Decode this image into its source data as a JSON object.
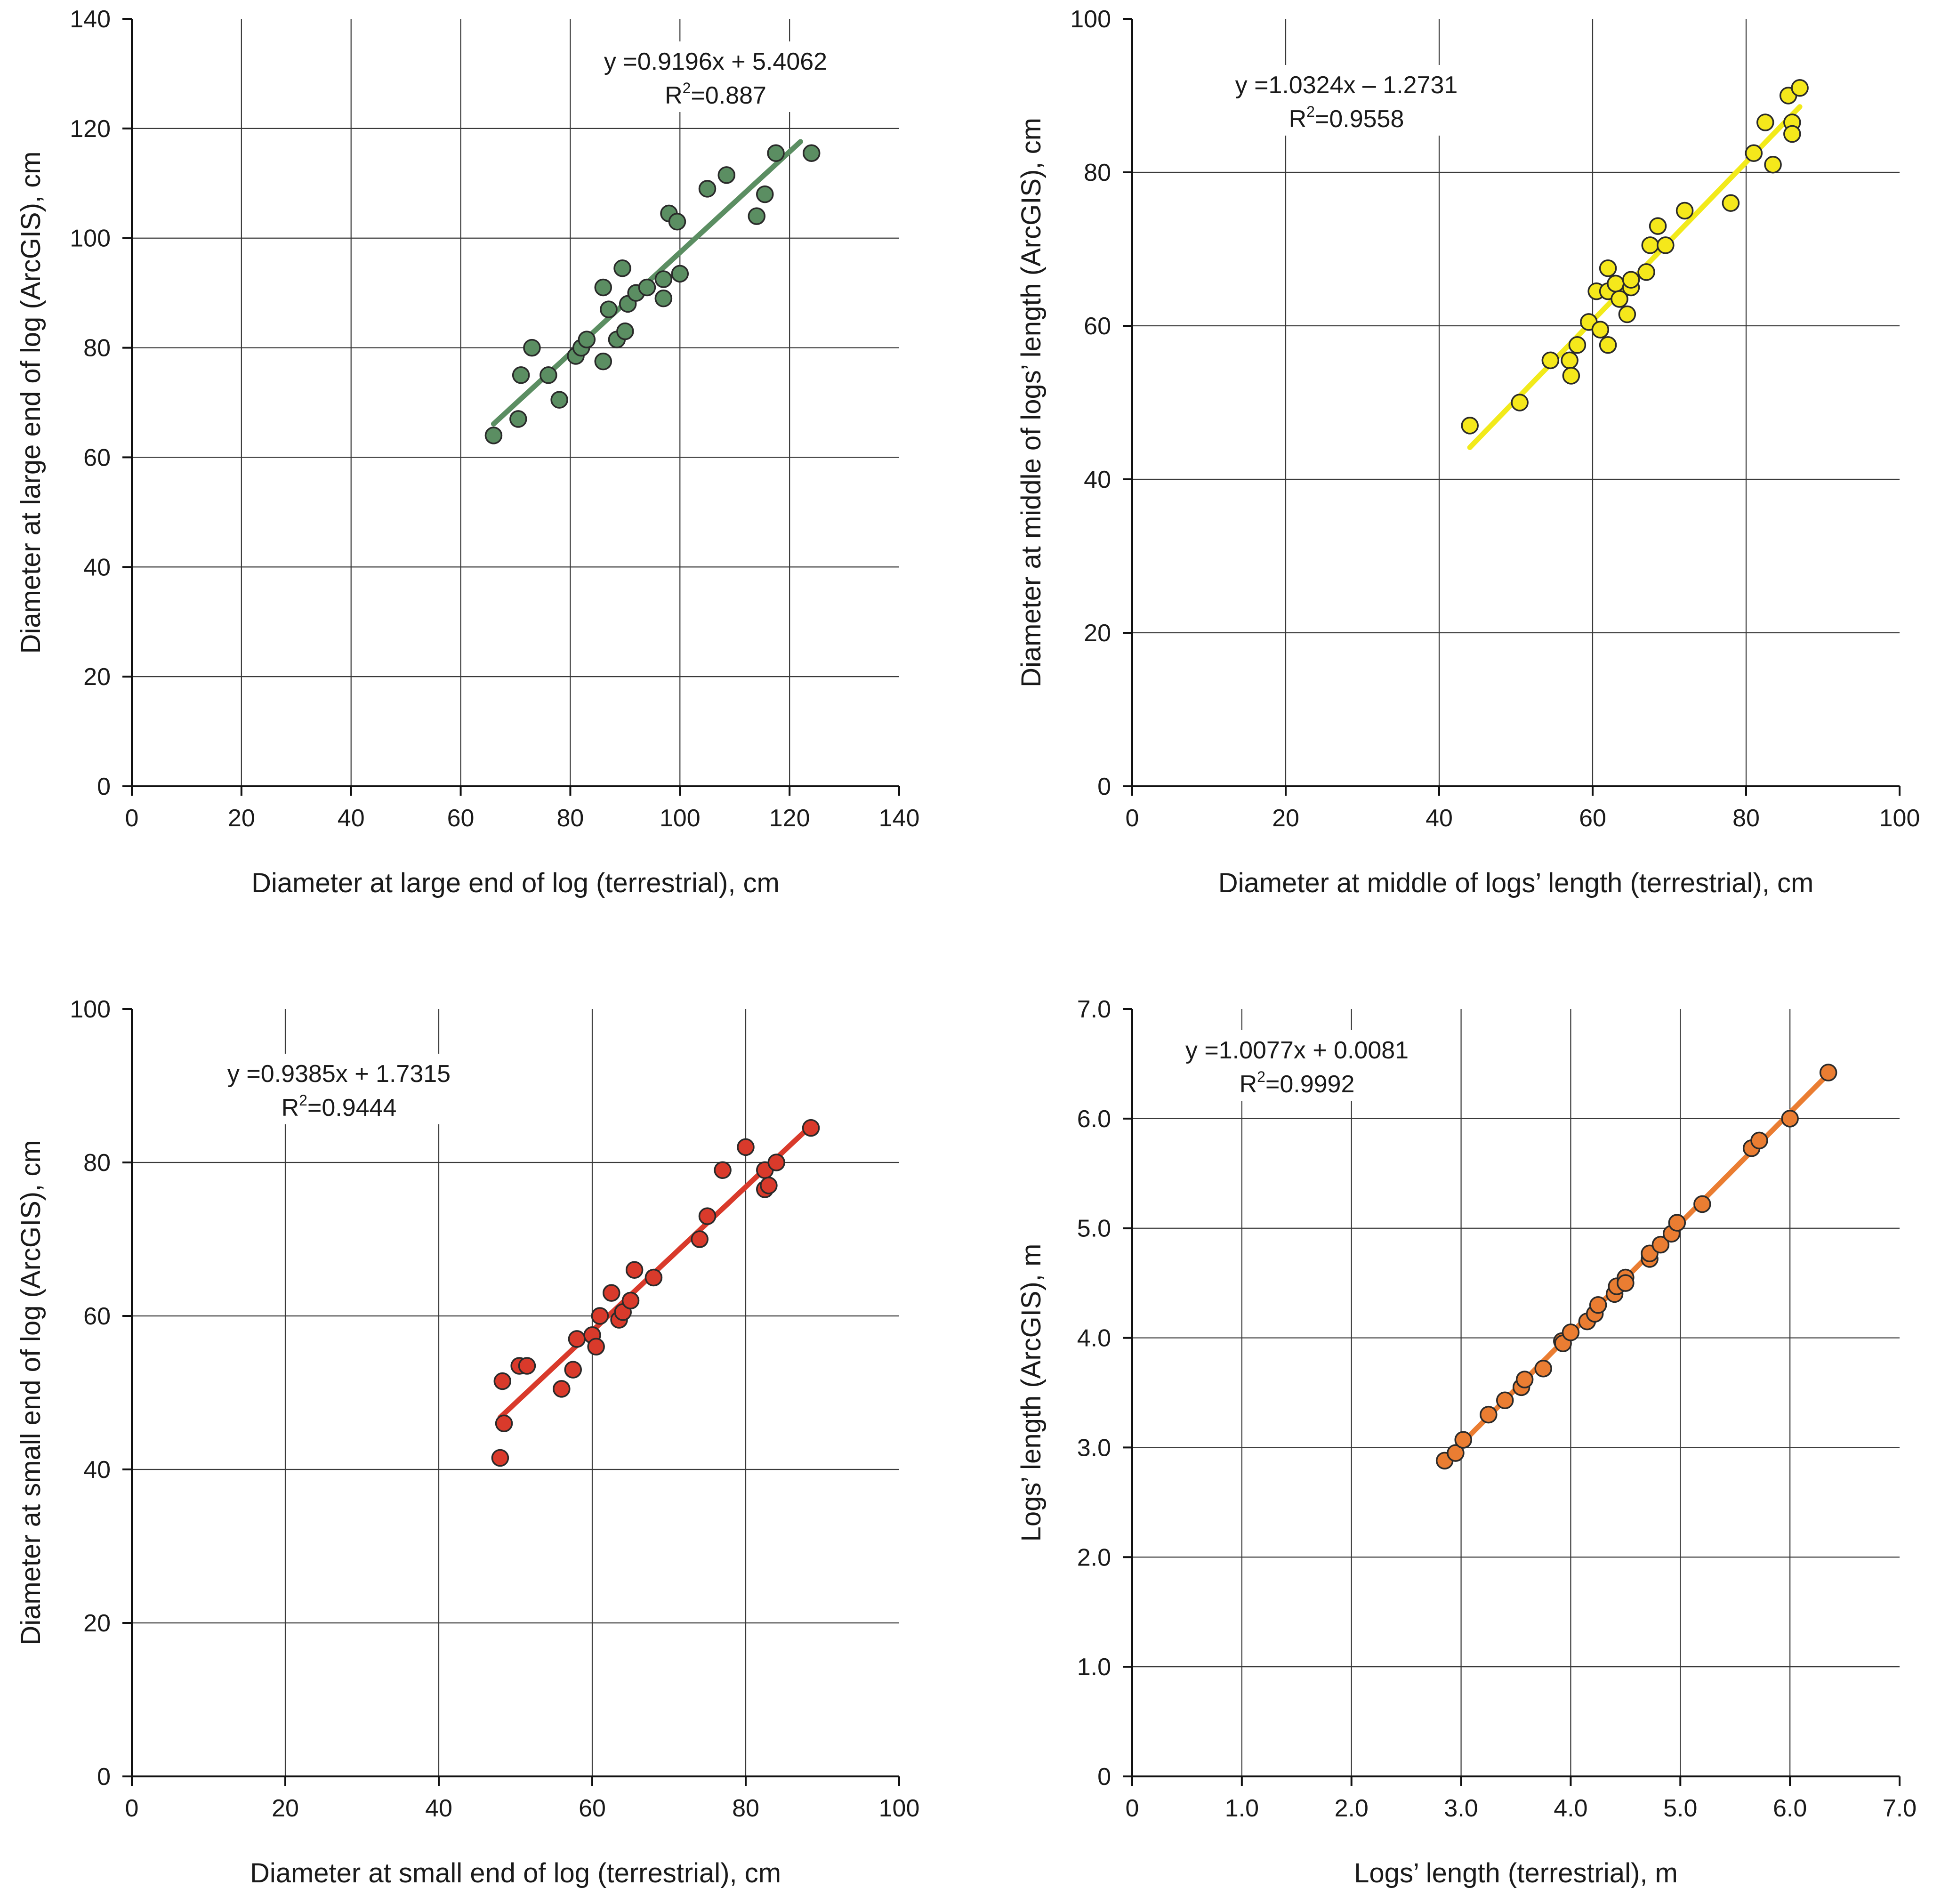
{
  "chart_data": [
    {
      "type": "scatter",
      "xlabel": "Diameter at large end of log (terrestrial), cm",
      "ylabel": "Diameter at large end of log (ArcGIS), cm",
      "xlim": [
        0,
        140
      ],
      "ylim": [
        0,
        140
      ],
      "xticks": [
        "0",
        "20",
        "40",
        "60",
        "80",
        "100",
        "120",
        "140"
      ],
      "yticks": [
        "0",
        "20",
        "40",
        "60",
        "80",
        "100",
        "120",
        "140"
      ],
      "equation": "y =0.9196x + 5.4062",
      "r2_prefix": "R",
      "r2_sup": "2",
      "r2_value": "=0.887",
      "trend": {
        "slope": 0.9196,
        "intercept": 5.4062,
        "x_range": [
          66,
          122
        ]
      },
      "color": "#5b8e62",
      "line_color": "#5b8e62",
      "points": [
        [
          66,
          64
        ],
        [
          70.5,
          67
        ],
        [
          71,
          75
        ],
        [
          73,
          80
        ],
        [
          76,
          75
        ],
        [
          78,
          70.5
        ],
        [
          81,
          78.5
        ],
        [
          82,
          80
        ],
        [
          83,
          81.5
        ],
        [
          86,
          77.5
        ],
        [
          86,
          91
        ],
        [
          87,
          87
        ],
        [
          88.5,
          81.5
        ],
        [
          89.5,
          94.5
        ],
        [
          90,
          83
        ],
        [
          90.5,
          88
        ],
        [
          92,
          90
        ],
        [
          94,
          91
        ],
        [
          97,
          89
        ],
        [
          97,
          92.5
        ],
        [
          98,
          104.5
        ],
        [
          99.5,
          103
        ],
        [
          100,
          93.5
        ],
        [
          105,
          109
        ],
        [
          108.5,
          111.5
        ],
        [
          114,
          104
        ],
        [
          115.5,
          108
        ],
        [
          117.5,
          115.5
        ],
        [
          124,
          115.5
        ]
      ]
    },
    {
      "type": "scatter",
      "xlabel": "Diameter at middle of logs’ length (terrestrial), cm",
      "ylabel": "Diameter at middle of logs’ length (ArcGIS), cm",
      "xlim": [
        0,
        100
      ],
      "ylim": [
        0,
        100
      ],
      "xticks": [
        "0",
        "20",
        "40",
        "60",
        "80",
        "100"
      ],
      "yticks": [
        "0",
        "20",
        "40",
        "60",
        "80",
        "100"
      ],
      "equation": "y =1.0324x – 1.2731",
      "r2_prefix": "R",
      "r2_sup": "2",
      "r2_value": "=0.9558",
      "trend": {
        "slope": 1.0324,
        "intercept": -1.2731,
        "x_range": [
          44,
          87
        ]
      },
      "color": "#f5e81b",
      "line_color": "#f2ea1a",
      "points": [
        [
          44,
          47
        ],
        [
          50.5,
          50
        ],
        [
          54.5,
          55.5
        ],
        [
          57,
          55.5
        ],
        [
          57.2,
          53.5
        ],
        [
          58,
          57.5
        ],
        [
          59.5,
          60.5
        ],
        [
          60.5,
          64.5
        ],
        [
          61,
          59.5
        ],
        [
          62,
          57.5
        ],
        [
          62,
          64.5
        ],
        [
          62,
          67.5
        ],
        [
          63,
          65.5
        ],
        [
          63.5,
          63.5
        ],
        [
          64.5,
          61.5
        ],
        [
          65,
          65
        ],
        [
          65,
          66
        ],
        [
          67,
          67
        ],
        [
          67.5,
          70.5
        ],
        [
          68.5,
          73
        ],
        [
          69.5,
          70.5
        ],
        [
          72,
          75
        ],
        [
          78,
          76
        ],
        [
          81,
          82.5
        ],
        [
          82.5,
          86.5
        ],
        [
          83.5,
          81
        ],
        [
          85.5,
          90
        ],
        [
          86,
          86.5
        ],
        [
          86,
          85
        ],
        [
          87,
          91
        ]
      ]
    },
    {
      "type": "scatter",
      "xlabel": "Diameter at small end of log (terrestrial), cm",
      "ylabel": "Diameter at small end of log (ArcGIS), cm",
      "xlim": [
        0,
        100
      ],
      "ylim": [
        0,
        100
      ],
      "xticks": [
        "0",
        "20",
        "40",
        "60",
        "80",
        "100"
      ],
      "yticks": [
        "0",
        "20",
        "40",
        "60",
        "80",
        "100"
      ],
      "equation": "y =0.9385x + 1.7315",
      "r2_prefix": "R",
      "r2_sup": "2",
      "r2_value": "=0.9444",
      "trend": {
        "slope": 0.9385,
        "intercept": 1.7315,
        "x_range": [
          48,
          88.5
        ]
      },
      "color": "#d93a2b",
      "line_color": "#d93a2b",
      "points": [
        [
          48,
          41.5
        ],
        [
          48.3,
          51.5
        ],
        [
          48.5,
          46
        ],
        [
          50.5,
          53.5
        ],
        [
          51.5,
          53.5
        ],
        [
          56,
          50.5
        ],
        [
          57.5,
          53
        ],
        [
          58,
          57
        ],
        [
          60,
          57.5
        ],
        [
          60.5,
          56
        ],
        [
          61,
          60
        ],
        [
          62.5,
          63
        ],
        [
          63.5,
          59.5
        ],
        [
          64,
          60.5
        ],
        [
          65,
          62
        ],
        [
          65.5,
          66
        ],
        [
          68,
          65
        ],
        [
          74,
          70
        ],
        [
          75,
          73
        ],
        [
          77,
          79
        ],
        [
          80,
          82
        ],
        [
          82.5,
          76.5
        ],
        [
          82.5,
          79
        ],
        [
          83,
          77
        ],
        [
          84,
          80
        ],
        [
          88.5,
          84.5
        ]
      ]
    },
    {
      "type": "scatter",
      "xlabel": "Logs’ length (terrestrial), m",
      "ylabel": "Logs’ length (ArcGIS), m",
      "xlim": [
        0,
        7
      ],
      "ylim": [
        0,
        7
      ],
      "xticks": [
        "0",
        "1.0",
        "2.0",
        "3.0",
        "4.0",
        "5.0",
        "6.0",
        "7.0"
      ],
      "yticks": [
        "0",
        "1.0",
        "2.0",
        "3.0",
        "4.0",
        "5.0",
        "6.0",
        "7.0"
      ],
      "equation": "y =1.0077x + 0.0081",
      "r2_prefix": "R",
      "r2_sup": "2",
      "r2_value": "=0.9992",
      "trend": {
        "slope": 1.0077,
        "intercept": 0.0081,
        "x_range": [
          2.85,
          6.35
        ]
      },
      "color": "#ea7d32",
      "line_color": "#ea7d32",
      "points": [
        [
          2.85,
          2.88
        ],
        [
          2.95,
          2.95
        ],
        [
          3.02,
          3.07
        ],
        [
          3.25,
          3.3
        ],
        [
          3.4,
          3.43
        ],
        [
          3.55,
          3.55
        ],
        [
          3.58,
          3.62
        ],
        [
          3.75,
          3.72
        ],
        [
          3.92,
          3.97
        ],
        [
          3.93,
          3.95
        ],
        [
          4.0,
          4.05
        ],
        [
          4.15,
          4.15
        ],
        [
          4.22,
          4.22
        ],
        [
          4.25,
          4.3
        ],
        [
          4.4,
          4.4
        ],
        [
          4.42,
          4.47
        ],
        [
          4.5,
          4.55
        ],
        [
          4.5,
          4.5
        ],
        [
          4.72,
          4.72
        ],
        [
          4.72,
          4.77
        ],
        [
          4.82,
          4.85
        ],
        [
          4.92,
          4.95
        ],
        [
          4.97,
          5.05
        ],
        [
          5.2,
          5.22
        ],
        [
          5.65,
          5.73
        ],
        [
          5.72,
          5.8
        ],
        [
          6.0,
          6.0
        ],
        [
          6.35,
          6.42
        ]
      ]
    }
  ]
}
